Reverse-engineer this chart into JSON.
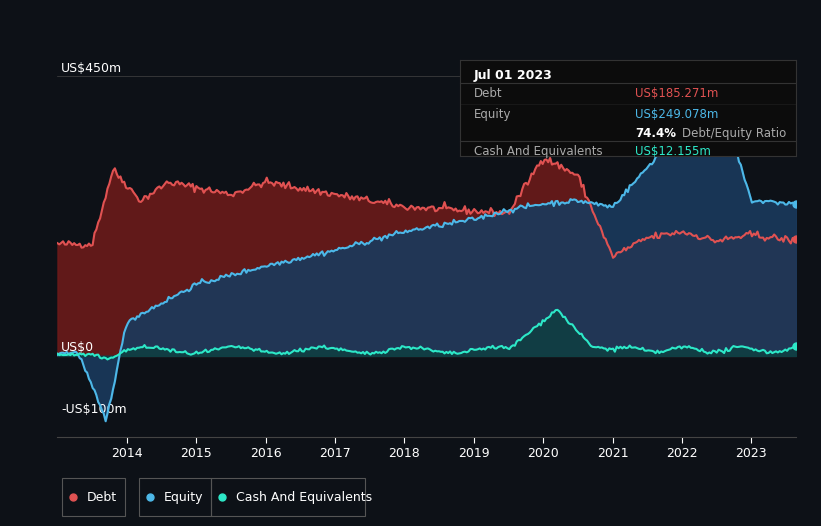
{
  "bg_color": "#0d1117",
  "ylabel_450": "US$450m",
  "ylabel_0": "US$0",
  "ylabel_n100": "-US$100m",
  "debt_color": "#e05252",
  "equity_color": "#4db8e8",
  "cash_color": "#2de8c8",
  "debt_fill_color": "#6b1a1a",
  "equity_fill_color": "#1a3a5c",
  "cash_fill_color": "#0d4040",
  "tooltip_title": "Jul 01 2023",
  "tooltip_debt_label": "Debt",
  "tooltip_debt_value": "US$185.271m",
  "tooltip_equity_label": "Equity",
  "tooltip_equity_value": "US$249.078m",
  "tooltip_ratio": "74.4%",
  "tooltip_ratio_label": "Debt/Equity Ratio",
  "tooltip_cash_label": "Cash And Equivalents",
  "tooltip_cash_value": "US$12.155m",
  "legend_debt": "Debt",
  "legend_equity": "Equity",
  "legend_cash": "Cash And Equivalents"
}
